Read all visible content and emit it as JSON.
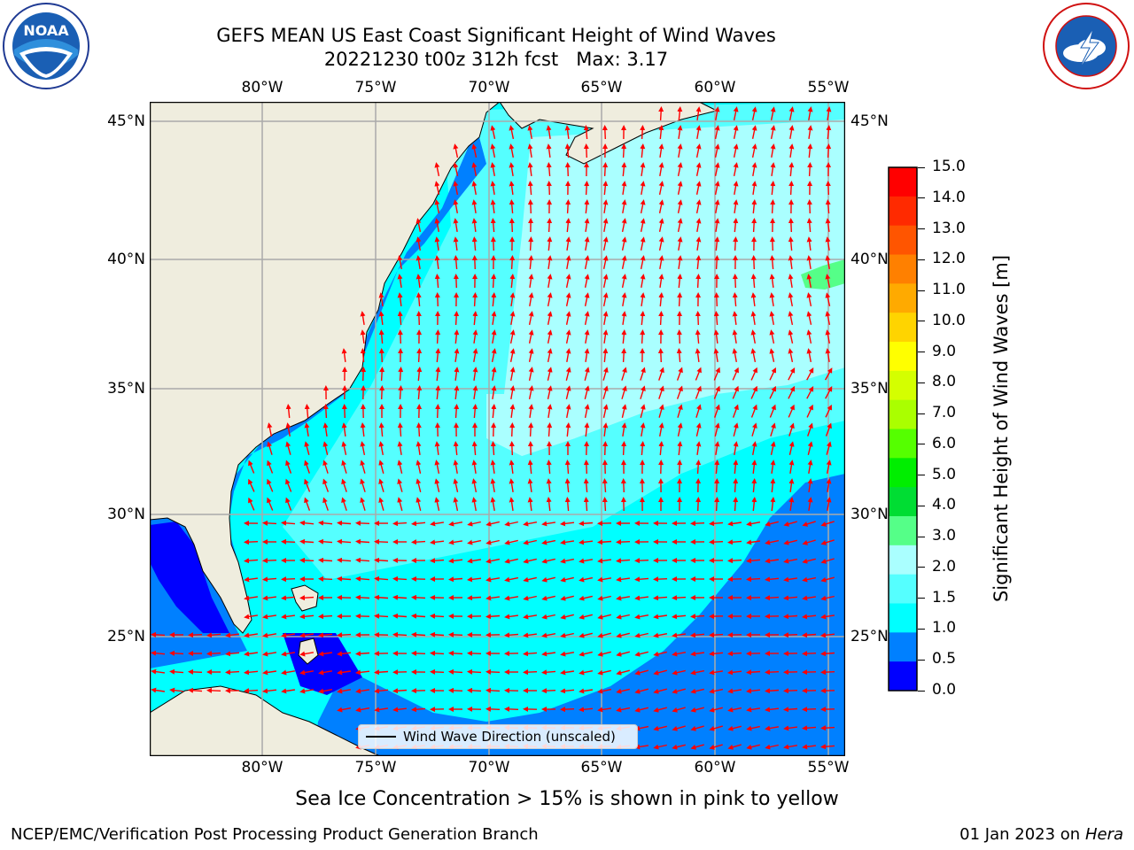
{
  "header": {
    "title_line1": "GEFS MEAN US East Coast Significant Height of Wind Waves",
    "title_line2": "20221230 t00z 312h fcst   Max: 3.17"
  },
  "logos": {
    "left": {
      "icon": "noaa-logo",
      "text": "NOAA",
      "ring_text": "NATIONAL OCEANIC AND ATMOSPHERIC ADMINISTRATION · U.S. DEPARTMENT OF COMMERCE"
    },
    "right": {
      "icon": "nws-logo",
      "ring_text": "NATIONAL WEATHER SERVICE"
    }
  },
  "map": {
    "lon_labels_top": [
      "80°W",
      "75°W",
      "70°W",
      "65°W",
      "60°W",
      "55°W"
    ],
    "lon_labels_bottom": [
      "80°W",
      "75°W",
      "70°W",
      "65°W",
      "60°W",
      "55°W"
    ],
    "lat_labels_left": [
      "45°N",
      "40°N",
      "35°N",
      "30°N",
      "25°N"
    ],
    "lat_labels_right": [
      "45°N",
      "40°N",
      "35°N",
      "30°N",
      "25°N"
    ],
    "legend_label": "Wind Wave Direction (unscaled)",
    "colors": {
      "land": "#efedde",
      "arrow": "#ff0000",
      "grid": "#aaaaaa"
    }
  },
  "colorbar": {
    "title": "Significant Height of Wind Waves [m]",
    "tick_labels": [
      "15.0",
      "14.0",
      "13.0",
      "12.0",
      "11.0",
      "10.0",
      "9.0",
      "8.0",
      "7.0",
      "6.0",
      "5.0",
      "4.0",
      "3.0",
      "2.0",
      "1.5",
      "1.0",
      "0.5",
      "0.0"
    ],
    "colors_top_to_bottom": [
      "#ff0000",
      "#ff2a00",
      "#ff5500",
      "#ff8000",
      "#ffaa00",
      "#ffd400",
      "#ffff00",
      "#d4ff00",
      "#aaff00",
      "#55ff00",
      "#00ee00",
      "#00dd33",
      "#55ff88",
      "#aaffff",
      "#55ffff",
      "#00ffff",
      "#0080ff",
      "#0000ff"
    ]
  },
  "footer": {
    "note": "Sea Ice Concentration > 15% is shown in pink to yellow",
    "left": "NCEP/EMC/Verification Post Processing Product Generation Branch",
    "right_date": "01 Jan 2023 on",
    "right_machine": "Hera"
  }
}
